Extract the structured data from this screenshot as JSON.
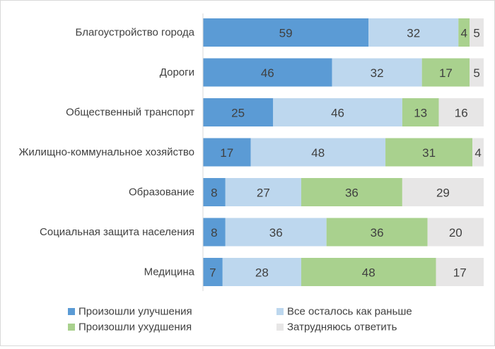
{
  "chart_data": {
    "type": "bar",
    "orientation": "horizontal",
    "stacked": "percent",
    "categories": [
      "Благоустройство города",
      "Дороги",
      "Общественный транспорт",
      "Жилищно-коммунальное хозяйство",
      "Образование",
      "Социальная защита населения",
      "Медицина"
    ],
    "series": [
      {
        "name": "Произошли улучшения",
        "values": [
          59,
          46,
          25,
          17,
          8,
          8,
          7
        ],
        "color": "#5b9bd5"
      },
      {
        "name": "Все осталось как раньше",
        "values": [
          32,
          32,
          46,
          48,
          27,
          36,
          28
        ],
        "color": "#bdd7ee"
      },
      {
        "name": "Произошли ухудшения",
        "values": [
          4,
          17,
          13,
          31,
          36,
          36,
          48
        ],
        "color": "#a9d18e"
      },
      {
        "name": "Затрудняюсь ответить",
        "values": [
          5,
          5,
          16,
          4,
          29,
          20,
          17
        ],
        "color": "#e7e6e6"
      }
    ],
    "xlim": [
      0,
      100
    ],
    "grid": false,
    "data_labels": true,
    "legend_position": "bottom",
    "legend_order": [
      0,
      1,
      2,
      3
    ],
    "text_color": "#404040",
    "axis_color": "#d9d9d9"
  }
}
